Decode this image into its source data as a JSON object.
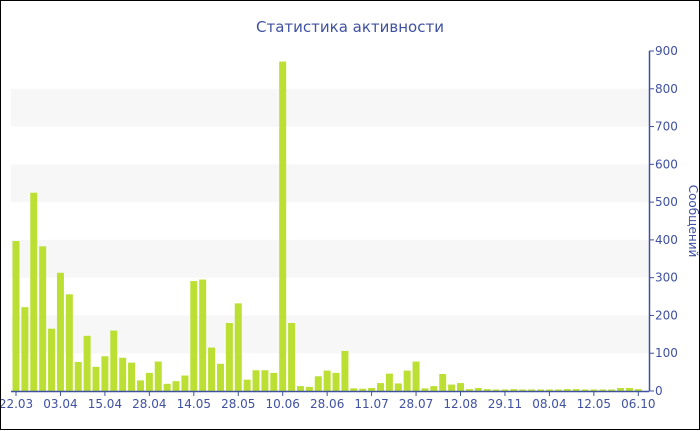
{
  "chart_data": {
    "type": "bar",
    "title": "Статистика активности",
    "ylabel": "Сообщений",
    "xlabel": "",
    "ylim": [
      0,
      900
    ],
    "yticks": [
      0,
      100,
      200,
      300,
      400,
      500,
      600,
      700,
      800,
      900
    ],
    "y_axis_side": "right",
    "grid": "alternating horizontal bands",
    "legend": "none",
    "bar_color": "#bbe033",
    "axis_color": "#3f51a0",
    "band_color": "#f7f7f7",
    "tick_labels": [
      "22.03",
      "03.04",
      "15.04",
      "28.04",
      "14.05",
      "28.05",
      "10.06",
      "28.06",
      "11.07",
      "28.07",
      "12.08",
      "29.11",
      "08.04",
      "12.05",
      "06.10"
    ],
    "tick_every": 5,
    "values": [
      397,
      222,
      525,
      383,
      165,
      313,
      256,
      77,
      146,
      64,
      92,
      160,
      88,
      75,
      28,
      48,
      78,
      19,
      26,
      41,
      291,
      295,
      115,
      72,
      180,
      232,
      30,
      55,
      55,
      48,
      872,
      180,
      13,
      11,
      39,
      54,
      48,
      106,
      7,
      6,
      8,
      21,
      46,
      20,
      54,
      78,
      7,
      13,
      45,
      17,
      21,
      5,
      8,
      5,
      4,
      4,
      5,
      4,
      4,
      4,
      4,
      4,
      5,
      5,
      4,
      4,
      4,
      4,
      8,
      8,
      5
    ]
  }
}
